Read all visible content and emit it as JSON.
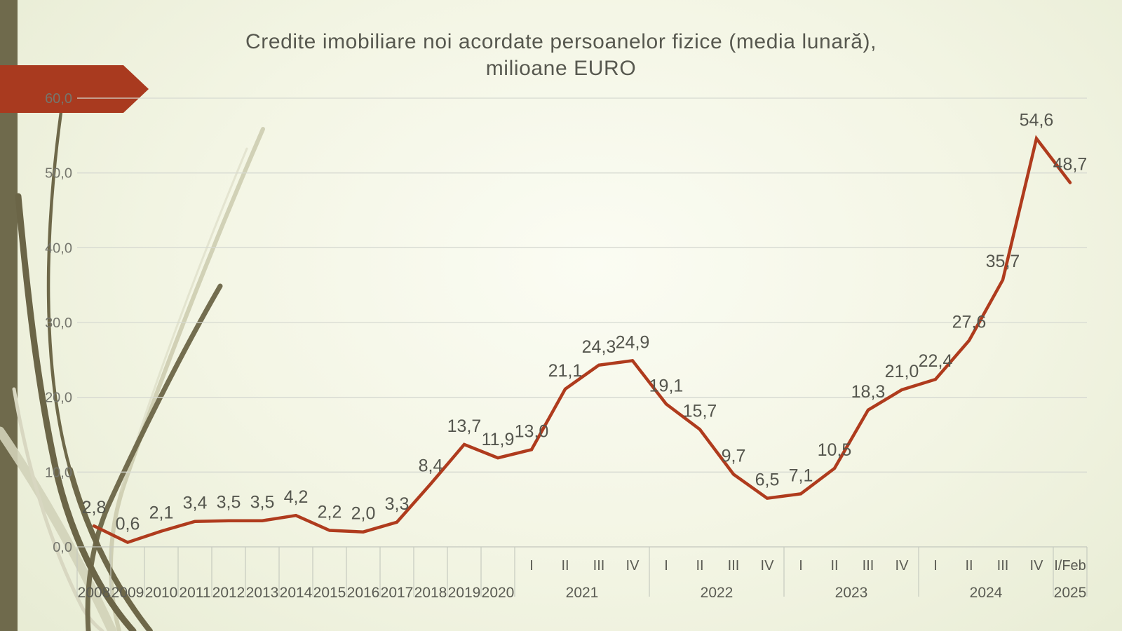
{
  "slide": {
    "title_lines": [
      "Credite imobiliare noi acordate persoanelor fizice (media lunară),",
      "milioane EURO"
    ],
    "colors": {
      "accent_arrow": "#a93a1f",
      "sidebar_strip": "#6f6a4c",
      "title_text": "#57584f",
      "background_center": "#fbfcf3",
      "background_edge": "#dfe4c8",
      "decor_dark_olive": "#6b6547",
      "decor_light_tan": "#cfcdb0"
    }
  },
  "chart_data": {
    "type": "line",
    "title": "Credite imobiliare noi acordate persoanelor fizice (media lunară), milioane EURO",
    "unit": "milioane EURO",
    "grid": true,
    "legend": "none",
    "series_color": "#af3b1d",
    "label_color": "#55564e",
    "axis_text_color": "#5a5b53",
    "y_text_color": "#75766d",
    "gridline_color": "#d6d9d1",
    "tick_color": "#c6cabf",
    "y_axis": {
      "min": 0,
      "max": 60,
      "step": 10,
      "tick_labels": [
        "0,0",
        "10,0",
        "20,0",
        "30,0",
        "40,0",
        "50,0",
        "60,0"
      ]
    },
    "x_axis": {
      "year_categories": [
        "2008",
        "2009",
        "2010",
        "2011",
        "2012",
        "2013",
        "2014",
        "2015",
        "2016",
        "2017",
        "2018",
        "2019",
        "2020"
      ],
      "quarter_groups": [
        {
          "year": "2021",
          "quarters": [
            "I",
            "II",
            "III",
            "IV"
          ]
        },
        {
          "year": "2022",
          "quarters": [
            "I",
            "II",
            "III",
            "IV"
          ]
        },
        {
          "year": "2023",
          "quarters": [
            "I",
            "II",
            "III",
            "IV"
          ]
        },
        {
          "year": "2024",
          "quarters": [
            "I",
            "II",
            "III",
            "IV"
          ]
        },
        {
          "year": "2025",
          "quarters": [
            "I/Feb"
          ]
        }
      ]
    },
    "values": [
      2.8,
      0.6,
      2.1,
      3.4,
      3.5,
      3.5,
      4.2,
      2.2,
      2.0,
      3.3,
      8.4,
      13.7,
      11.9,
      13.0,
      21.1,
      24.3,
      24.9,
      19.1,
      15.7,
      9.7,
      6.5,
      7.1,
      10.5,
      18.3,
      21.0,
      22.4,
      27.6,
      35.7,
      54.6,
      48.7
    ],
    "point_labels": [
      "2,8",
      "0,6",
      "2,1",
      "3,4",
      "3,5",
      "3,5",
      "4,2",
      "2,2",
      "2,0",
      "3,3",
      "8,4",
      "13,7",
      "11,9",
      "13,0",
      "21,1",
      "24,3",
      "24,9",
      "19,1",
      "15,7",
      "9,7",
      "6,5",
      "7,1",
      "10,5",
      "18,3",
      "21,0",
      "22,4",
      "27,6",
      "35,7",
      "54,6",
      "48,7"
    ]
  }
}
